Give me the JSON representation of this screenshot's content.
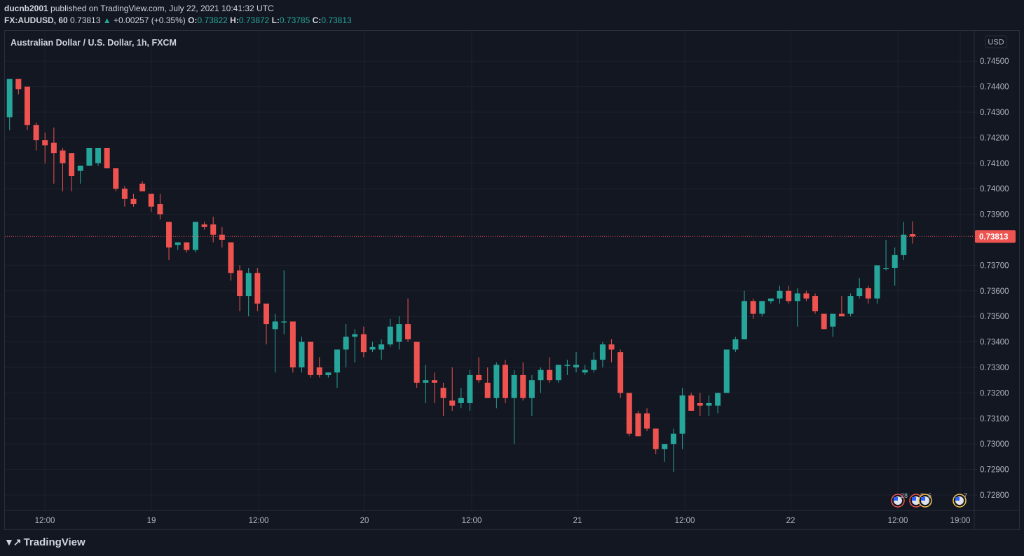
{
  "header": {
    "user": "ducnb2001",
    "published_text": "published on TradingView.com, July 22, 2021 10:41:32 UTC",
    "symbol": "FX:AUDUSD, 60",
    "last": "0.73813",
    "change_icon": "triangle-up-icon",
    "change": "+0.00257 (+0.35%)",
    "o_label": "O:",
    "o": "0.73822",
    "h_label": "H:",
    "h": "0.73872",
    "l_label": "L:",
    "l": "0.73785",
    "c_label": "C:",
    "c": "0.73813"
  },
  "chart_title": "Australian Dollar / U.S. Dollar, 1h, FXCM",
  "currency_badge": "USD",
  "last_price_label": "0.73813",
  "footer": {
    "logo_text": "TradingView"
  },
  "colors": {
    "up": "#26a69a",
    "down": "#ef5350",
    "background": "#131722",
    "grid": "#1e222d",
    "text": "#b2b5be"
  },
  "events": [
    {
      "icon": "us-flag-icon",
      "count": "28"
    },
    {
      "icon": "us-flag-icon",
      "count": "5"
    },
    {
      "icon": "us-flag-icon",
      "count": "6"
    },
    {
      "icon": "globe-icon",
      "count": "7"
    }
  ],
  "chart_data": {
    "type": "candlestick",
    "title": "Australian Dollar / U.S. Dollar, 1h, FXCM",
    "ylim": [
      0.7275,
      0.7461
    ],
    "y_ticks": [
      "0.74500",
      "0.74400",
      "0.74300",
      "0.74200",
      "0.74100",
      "0.74000",
      "0.73900",
      "0.73700",
      "0.73600",
      "0.73500",
      "0.73400",
      "0.73300",
      "0.73200",
      "0.73100",
      "0.73000",
      "0.72900",
      "0.72800"
    ],
    "x_ticks": [
      "12:00",
      "19",
      "12:00",
      "20",
      "12:00",
      "21",
      "12:00",
      "22",
      "12:00",
      "19:00"
    ],
    "grid": true,
    "last_price": 0.73813,
    "candles": [
      {
        "o": 0.7428,
        "h": 0.7443,
        "l": 0.7423,
        "c": 0.7443
      },
      {
        "o": 0.7443,
        "h": 0.7443,
        "l": 0.7437,
        "c": 0.7439
      },
      {
        "o": 0.744,
        "h": 0.744,
        "l": 0.7423,
        "c": 0.7425
      },
      {
        "o": 0.7425,
        "h": 0.7426,
        "l": 0.7415,
        "c": 0.7419
      },
      {
        "o": 0.7419,
        "h": 0.7422,
        "l": 0.741,
        "c": 0.7417
      },
      {
        "o": 0.7418,
        "h": 0.7424,
        "l": 0.7402,
        "c": 0.7414
      },
      {
        "o": 0.7415,
        "h": 0.7416,
        "l": 0.7399,
        "c": 0.741
      },
      {
        "o": 0.7414,
        "h": 0.7414,
        "l": 0.7399,
        "c": 0.7405
      },
      {
        "o": 0.7407,
        "h": 0.7409,
        "l": 0.7402,
        "c": 0.7409
      },
      {
        "o": 0.7409,
        "h": 0.7416,
        "l": 0.7409,
        "c": 0.7416
      },
      {
        "o": 0.741,
        "h": 0.7416,
        "l": 0.7409,
        "c": 0.7416
      },
      {
        "o": 0.7416,
        "h": 0.7416,
        "l": 0.7408,
        "c": 0.7408
      },
      {
        "o": 0.7408,
        "h": 0.7408,
        "l": 0.7399,
        "c": 0.74
      },
      {
        "o": 0.74,
        "h": 0.7401,
        "l": 0.7393,
        "c": 0.7396
      },
      {
        "o": 0.7396,
        "h": 0.7398,
        "l": 0.7393,
        "c": 0.7394
      },
      {
        "o": 0.7402,
        "h": 0.7403,
        "l": 0.7399,
        "c": 0.7399
      },
      {
        "o": 0.7398,
        "h": 0.7398,
        "l": 0.7391,
        "c": 0.7393
      },
      {
        "o": 0.7394,
        "h": 0.7398,
        "l": 0.7388,
        "c": 0.739
      },
      {
        "o": 0.7387,
        "h": 0.7387,
        "l": 0.7372,
        "c": 0.7377
      },
      {
        "o": 0.7378,
        "h": 0.7379,
        "l": 0.7376,
        "c": 0.7379
      },
      {
        "o": 0.7379,
        "h": 0.7379,
        "l": 0.7375,
        "c": 0.7376
      },
      {
        "o": 0.7376,
        "h": 0.7387,
        "l": 0.7375,
        "c": 0.7387
      },
      {
        "o": 0.7386,
        "h": 0.7387,
        "l": 0.7384,
        "c": 0.7385
      },
      {
        "o": 0.7386,
        "h": 0.7389,
        "l": 0.7379,
        "c": 0.7382
      },
      {
        "o": 0.7382,
        "h": 0.7385,
        "l": 0.7377,
        "c": 0.738
      },
      {
        "o": 0.7379,
        "h": 0.7379,
        "l": 0.7364,
        "c": 0.7367
      },
      {
        "o": 0.7368,
        "h": 0.737,
        "l": 0.7352,
        "c": 0.7358
      },
      {
        "o": 0.7358,
        "h": 0.7369,
        "l": 0.735,
        "c": 0.7367
      },
      {
        "o": 0.7367,
        "h": 0.7369,
        "l": 0.7352,
        "c": 0.7355
      },
      {
        "o": 0.7355,
        "h": 0.7355,
        "l": 0.7339,
        "c": 0.7347
      },
      {
        "o": 0.7345,
        "h": 0.7351,
        "l": 0.7328,
        "c": 0.7348
      },
      {
        "o": 0.7348,
        "h": 0.7368,
        "l": 0.7343,
        "c": 0.7348
      },
      {
        "o": 0.7348,
        "h": 0.7348,
        "l": 0.7328,
        "c": 0.733
      },
      {
        "o": 0.733,
        "h": 0.7342,
        "l": 0.7328,
        "c": 0.734
      },
      {
        "o": 0.734,
        "h": 0.734,
        "l": 0.7326,
        "c": 0.7327
      },
      {
        "o": 0.733,
        "h": 0.7334,
        "l": 0.7326,
        "c": 0.7327
      },
      {
        "o": 0.7327,
        "h": 0.7328,
        "l": 0.7326,
        "c": 0.7328
      },
      {
        "o": 0.7328,
        "h": 0.7337,
        "l": 0.7322,
        "c": 0.7337
      },
      {
        "o": 0.7337,
        "h": 0.7347,
        "l": 0.733,
        "c": 0.7342
      },
      {
        "o": 0.7342,
        "h": 0.7345,
        "l": 0.7332,
        "c": 0.7343
      },
      {
        "o": 0.7343,
        "h": 0.7346,
        "l": 0.7334,
        "c": 0.7336
      },
      {
        "o": 0.7337,
        "h": 0.734,
        "l": 0.7336,
        "c": 0.7338
      },
      {
        "o": 0.7337,
        "h": 0.7341,
        "l": 0.7333,
        "c": 0.7339
      },
      {
        "o": 0.7339,
        "h": 0.7349,
        "l": 0.7338,
        "c": 0.7346
      },
      {
        "o": 0.734,
        "h": 0.735,
        "l": 0.7337,
        "c": 0.7347
      },
      {
        "o": 0.7347,
        "h": 0.7357,
        "l": 0.734,
        "c": 0.7341
      },
      {
        "o": 0.734,
        "h": 0.734,
        "l": 0.7322,
        "c": 0.7324
      },
      {
        "o": 0.7324,
        "h": 0.7331,
        "l": 0.7316,
        "c": 0.7325
      },
      {
        "o": 0.7325,
        "h": 0.7328,
        "l": 0.7316,
        "c": 0.7324
      },
      {
        "o": 0.7322,
        "h": 0.7324,
        "l": 0.7311,
        "c": 0.7318
      },
      {
        "o": 0.7317,
        "h": 0.733,
        "l": 0.7313,
        "c": 0.7315
      },
      {
        "o": 0.7316,
        "h": 0.7322,
        "l": 0.7314,
        "c": 0.7318
      },
      {
        "o": 0.7316,
        "h": 0.7329,
        "l": 0.7313,
        "c": 0.7327
      },
      {
        "o": 0.7327,
        "h": 0.7334,
        "l": 0.7324,
        "c": 0.7325
      },
      {
        "o": 0.7324,
        "h": 0.733,
        "l": 0.7318,
        "c": 0.7318
      },
      {
        "o": 0.7318,
        "h": 0.7332,
        "l": 0.7314,
        "c": 0.7331
      },
      {
        "o": 0.7331,
        "h": 0.7333,
        "l": 0.7316,
        "c": 0.7318
      },
      {
        "o": 0.7318,
        "h": 0.7329,
        "l": 0.73,
        "c": 0.7327
      },
      {
        "o": 0.7327,
        "h": 0.7332,
        "l": 0.7317,
        "c": 0.7318
      },
      {
        "o": 0.7318,
        "h": 0.7327,
        "l": 0.7311,
        "c": 0.7325
      },
      {
        "o": 0.7325,
        "h": 0.733,
        "l": 0.732,
        "c": 0.7329
      },
      {
        "o": 0.7329,
        "h": 0.7334,
        "l": 0.7324,
        "c": 0.7325
      },
      {
        "o": 0.7325,
        "h": 0.7331,
        "l": 0.7324,
        "c": 0.7331
      },
      {
        "o": 0.7331,
        "h": 0.7333,
        "l": 0.7327,
        "c": 0.7331
      },
      {
        "o": 0.733,
        "h": 0.7336,
        "l": 0.7328,
        "c": 0.7331
      },
      {
        "o": 0.7328,
        "h": 0.7331,
        "l": 0.7327,
        "c": 0.7329
      },
      {
        "o": 0.7329,
        "h": 0.7336,
        "l": 0.7328,
        "c": 0.7333
      },
      {
        "o": 0.7333,
        "h": 0.734,
        "l": 0.733,
        "c": 0.7339
      },
      {
        "o": 0.7339,
        "h": 0.7341,
        "l": 0.7332,
        "c": 0.7337
      },
      {
        "o": 0.7336,
        "h": 0.7337,
        "l": 0.7318,
        "c": 0.732
      },
      {
        "o": 0.732,
        "h": 0.732,
        "l": 0.7303,
        "c": 0.7304
      },
      {
        "o": 0.7312,
        "h": 0.7313,
        "l": 0.7303,
        "c": 0.7303
      },
      {
        "o": 0.7312,
        "h": 0.7314,
        "l": 0.7305,
        "c": 0.7306
      },
      {
        "o": 0.7306,
        "h": 0.7306,
        "l": 0.7296,
        "c": 0.7298
      },
      {
        "o": 0.7298,
        "h": 0.73,
        "l": 0.7293,
        "c": 0.73
      },
      {
        "o": 0.73,
        "h": 0.7306,
        "l": 0.7289,
        "c": 0.7304
      },
      {
        "o": 0.7304,
        "h": 0.7322,
        "l": 0.7298,
        "c": 0.7319
      },
      {
        "o": 0.7319,
        "h": 0.732,
        "l": 0.7313,
        "c": 0.7313
      },
      {
        "o": 0.7316,
        "h": 0.732,
        "l": 0.7311,
        "c": 0.7315
      },
      {
        "o": 0.7315,
        "h": 0.7319,
        "l": 0.7311,
        "c": 0.7316
      },
      {
        "o": 0.7315,
        "h": 0.732,
        "l": 0.7312,
        "c": 0.732
      },
      {
        "o": 0.732,
        "h": 0.7337,
        "l": 0.732,
        "c": 0.7337
      },
      {
        "o": 0.7337,
        "h": 0.7342,
        "l": 0.7336,
        "c": 0.7341
      },
      {
        "o": 0.7341,
        "h": 0.736,
        "l": 0.7341,
        "c": 0.7356
      },
      {
        "o": 0.7356,
        "h": 0.7357,
        "l": 0.7349,
        "c": 0.7351
      },
      {
        "o": 0.7351,
        "h": 0.7356,
        "l": 0.735,
        "c": 0.7356
      },
      {
        "o": 0.7356,
        "h": 0.7357,
        "l": 0.7355,
        "c": 0.7357
      },
      {
        "o": 0.7357,
        "h": 0.7362,
        "l": 0.7355,
        "c": 0.736
      },
      {
        "o": 0.736,
        "h": 0.7362,
        "l": 0.7355,
        "c": 0.7356
      },
      {
        "o": 0.7356,
        "h": 0.7361,
        "l": 0.7346,
        "c": 0.7359
      },
      {
        "o": 0.7359,
        "h": 0.736,
        "l": 0.7356,
        "c": 0.7357
      },
      {
        "o": 0.7358,
        "h": 0.7359,
        "l": 0.7351,
        "c": 0.7352
      },
      {
        "o": 0.7351,
        "h": 0.7351,
        "l": 0.7345,
        "c": 0.7345
      },
      {
        "o": 0.7346,
        "h": 0.7351,
        "l": 0.7342,
        "c": 0.7351
      },
      {
        "o": 0.7351,
        "h": 0.7358,
        "l": 0.735,
        "c": 0.735
      },
      {
        "o": 0.7351,
        "h": 0.7359,
        "l": 0.735,
        "c": 0.7358
      },
      {
        "o": 0.7358,
        "h": 0.7365,
        "l": 0.7357,
        "c": 0.7361
      },
      {
        "o": 0.7361,
        "h": 0.7362,
        "l": 0.7355,
        "c": 0.7357
      },
      {
        "o": 0.7357,
        "h": 0.737,
        "l": 0.7355,
        "c": 0.737
      },
      {
        "o": 0.7369,
        "h": 0.738,
        "l": 0.7368,
        "c": 0.7369
      },
      {
        "o": 0.7369,
        "h": 0.7377,
        "l": 0.7362,
        "c": 0.7374
      },
      {
        "o": 0.7374,
        "h": 0.7387,
        "l": 0.7372,
        "c": 0.7382
      },
      {
        "o": 0.73822,
        "h": 0.73872,
        "l": 0.73785,
        "c": 0.73813
      }
    ]
  }
}
